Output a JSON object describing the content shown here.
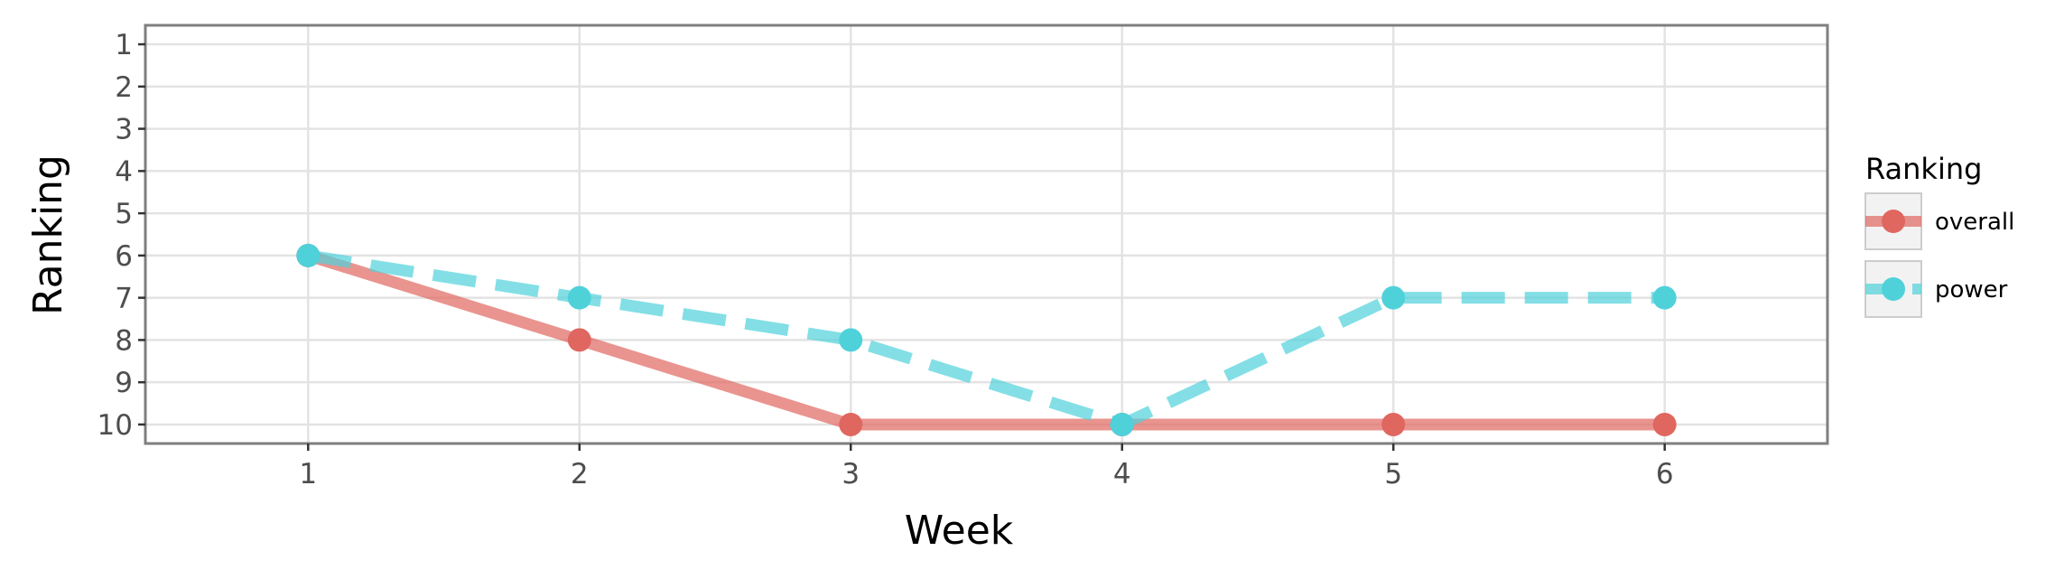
{
  "chart_data": {
    "type": "line",
    "title": "",
    "xlabel": "Week",
    "ylabel": "Ranking",
    "x": [
      1,
      2,
      3,
      4,
      5,
      6
    ],
    "x_ticks": [
      "1",
      "2",
      "3",
      "4",
      "5",
      "6"
    ],
    "y_ticks": [
      "1",
      "2",
      "3",
      "4",
      "5",
      "6",
      "7",
      "8",
      "9",
      "10"
    ],
    "xlim": [
      0.4,
      6.6
    ],
    "ylim": [
      10.45,
      0.55
    ],
    "y_reversed": true,
    "grid": true,
    "legend": {
      "title": "Ranking",
      "position": "right"
    },
    "series": [
      {
        "name": "overall",
        "values": [
          6,
          8,
          10,
          10,
          10,
          10
        ],
        "color": "#E06660",
        "linestyle": "solid"
      },
      {
        "name": "power",
        "values": [
          6,
          7,
          8,
          10,
          7,
          7
        ],
        "color": "#4FD1DA",
        "linestyle": "dashed"
      }
    ]
  }
}
